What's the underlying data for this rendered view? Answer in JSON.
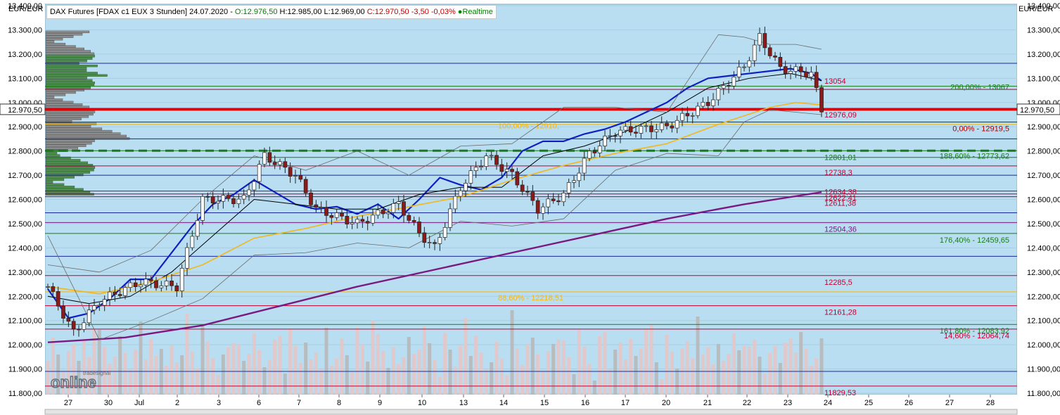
{
  "header": {
    "instrument": "DAX Futures [FDAX c1 EUX 3 Stunden] 24.07.2020 -",
    "open": "O:12.976,50",
    "high": "H:12.985,00",
    "low": "L:12.969,00",
    "close": "C:12.970,50",
    "change": "-3,50",
    "change_pct": "-0,03%",
    "realtime": "Realtime"
  },
  "logo": {
    "top": "tradesignal",
    "main": "online"
  },
  "colors": {
    "plot_bg": "#b9def2",
    "sma_blue": "#1020c0",
    "sma_black": "#000000",
    "sma_orange": "#f0b820",
    "sma_purple": "#7a1a80",
    "bollinger": "#6b6b6b",
    "candle_up": "#ffffff",
    "candle_down": "#8b1a1a",
    "volume": "#e8c4c4",
    "last_price_line": "#e00000",
    "support_green": "#1a7a1a"
  },
  "chart_data": {
    "type": "candlestick",
    "currency_label_left": "EUR/EUR",
    "currency_label_right": "EUR/EUR",
    "ylim": [
      11800,
      13400
    ],
    "y_ticks": [
      "13.400,00",
      "13.300,00",
      "13.200,00",
      "13.100,00",
      "13.000,00",
      "12.900,00",
      "12.800,00",
      "12.700,00",
      "12.600,00",
      "12.500,00",
      "12.400,00",
      "12.300,00",
      "12.200,00",
      "12.100,00",
      "12.000,00",
      "11.900,00",
      "11.800,00"
    ],
    "last_price": 12970.5,
    "last_price_label": "12.970,50",
    "x_tick_labels": [
      "27",
      "30",
      "Jul",
      "2",
      "3",
      "6",
      "7",
      "8",
      "9",
      "10",
      "13",
      "14",
      "15",
      "16",
      "17",
      "20",
      "21",
      "22",
      "23",
      "24",
      "25",
      "26",
      "27",
      "28"
    ],
    "horizontal_levels": [
      {
        "value": 13162,
        "color": "#1a2a9a"
      },
      {
        "value": 13054,
        "color": "#c00030",
        "label": "13054"
      },
      {
        "value": 13067,
        "color": "#1a7a1a",
        "label": "200,00% - 13067"
      },
      {
        "value": 12976.09,
        "color": "#c00030",
        "label": "12976,09"
      },
      {
        "value": 12919.5,
        "color": "#b00000",
        "label": "0,00% - 12919,5"
      },
      {
        "value": 12910,
        "color": "#f0b820",
        "label": "100,00% - 12910,"
      },
      {
        "value": 12850,
        "color": "#1a2a9a"
      },
      {
        "value": 12801.01,
        "color": "#1a7a1a",
        "label": "12801,01"
      },
      {
        "value": 12773.62,
        "color": "#1a7a1a",
        "label": "188,60% - 12773,62"
      },
      {
        "value": 12738.3,
        "color": "#c00030",
        "label": "12738,3"
      },
      {
        "value": 12700,
        "color": "#1a2a9a"
      },
      {
        "value": 12634.38,
        "color": "#c00030",
        "label": "12634,38"
      },
      {
        "value": 12622.41,
        "color": "#c00030",
        "label": "12622,41"
      },
      {
        "value": 12611.38,
        "color": "#c00030",
        "label": "12611,38"
      },
      {
        "value": 12545,
        "color": "#1a2a9a"
      },
      {
        "value": 12504.36,
        "color": "#7a1a80",
        "label": "12504,36"
      },
      {
        "value": 12459.65,
        "color": "#1a7a1a",
        "label": "176,40% - 12459,65"
      },
      {
        "value": 12365,
        "color": "#1a2a9a"
      },
      {
        "value": 12285.5,
        "color": "#c00030",
        "label": "12285,5"
      },
      {
        "value": 12218.51,
        "color": "#f0b820",
        "label": "88,60% - 12218,51"
      },
      {
        "value": 12161.28,
        "color": "#c00030",
        "label": "12161,28"
      },
      {
        "value": 12083.92,
        "color": "#1a7a1a",
        "label": "161,80% - 12083,92"
      },
      {
        "value": 12064.74,
        "color": "#c00030",
        "label": "14,60% - 12064,74"
      },
      {
        "value": 11890,
        "color": "#1a2a9a"
      },
      {
        "value": 11829.53,
        "color": "#c00030",
        "label": "11829,53"
      }
    ],
    "dashed_support": 12801.01,
    "series": [
      {
        "name": "SMA blue",
        "color": "#1020c0",
        "x": [
          0,
          4,
          8,
          12,
          16,
          20,
          24,
          28,
          32,
          36,
          40,
          44,
          48,
          52,
          56,
          60,
          64,
          68,
          72,
          76,
          80,
          84,
          88,
          92,
          96,
          100,
          104,
          108,
          112,
          116,
          120,
          124,
          128,
          132,
          136,
          140,
          144,
          148,
          150
        ],
        "values": [
          12230,
          12110,
          12130,
          12190,
          12270,
          12270,
          12380,
          12490,
          12580,
          12620,
          12680,
          12630,
          12580,
          12560,
          12570,
          12540,
          12580,
          12520,
          12600,
          12690,
          12660,
          12640,
          12690,
          12800,
          12840,
          12840,
          12870,
          12890,
          12920,
          12960,
          13000,
          13060,
          13100,
          13110,
          13120,
          13130,
          13140,
          13120,
          13090
        ]
      },
      {
        "name": "SMA black",
        "color": "#000000",
        "x": [
          0,
          8,
          16,
          24,
          32,
          40,
          48,
          56,
          64,
          72,
          80,
          88,
          96,
          104,
          112,
          120,
          128,
          136,
          144,
          150
        ],
        "values": [
          12200,
          12170,
          12200,
          12300,
          12450,
          12600,
          12580,
          12560,
          12560,
          12620,
          12650,
          12650,
          12780,
          12820,
          12880,
          12960,
          13060,
          13100,
          13120,
          13090
        ]
      },
      {
        "name": "SMA orange",
        "color": "#f0b820",
        "x": [
          0,
          10,
          20,
          30,
          40,
          50,
          60,
          70,
          80,
          90,
          100,
          110,
          120,
          130,
          140,
          145,
          150
        ],
        "values": [
          12240,
          12210,
          12260,
          12330,
          12440,
          12480,
          12530,
          12570,
          12610,
          12680,
          12740,
          12790,
          12830,
          12910,
          12980,
          13000,
          12990
        ]
      },
      {
        "name": "SMA purple",
        "color": "#7a1a80",
        "x": [
          0,
          15,
          30,
          45,
          60,
          75,
          90,
          105,
          120,
          135,
          150
        ],
        "values": [
          12010,
          12030,
          12080,
          12160,
          12240,
          12310,
          12380,
          12450,
          12520,
          12580,
          12630
        ]
      },
      {
        "name": "Bollinger upper",
        "color": "#6b6b6b",
        "x": [
          0,
          10,
          20,
          30,
          40,
          50,
          60,
          70,
          80,
          90,
          100,
          110,
          120,
          130,
          135,
          140,
          145,
          150
        ],
        "values": [
          12330,
          12300,
          12390,
          12600,
          12780,
          12720,
          12800,
          12700,
          12820,
          12830,
          12980,
          12980,
          12960,
          13280,
          13270,
          13240,
          13240,
          13220
        ]
      },
      {
        "name": "Bollinger lower",
        "color": "#6b6b6b",
        "x": [
          0,
          10,
          20,
          30,
          40,
          50,
          60,
          70,
          80,
          90,
          100,
          110,
          120,
          130,
          135,
          140,
          145,
          150
        ],
        "values": [
          12450,
          12020,
          12100,
          12190,
          12370,
          12380,
          12420,
          12400,
          12510,
          12490,
          12520,
          12720,
          12790,
          12780,
          12920,
          12970,
          12960,
          12950
        ]
      }
    ],
    "candles_approx": {
      "count": 151,
      "start": 12240,
      "path": [
        [
          0,
          12240
        ],
        [
          5,
          12050
        ],
        [
          10,
          12180
        ],
        [
          18,
          12260
        ],
        [
          25,
          12240
        ],
        [
          30,
          12600
        ],
        [
          38,
          12600
        ],
        [
          42,
          12780
        ],
        [
          48,
          12700
        ],
        [
          52,
          12560
        ],
        [
          60,
          12500
        ],
        [
          68,
          12580
        ],
        [
          72,
          12460
        ],
        [
          75,
          12400
        ],
        [
          80,
          12650
        ],
        [
          85,
          12780
        ],
        [
          90,
          12700
        ],
        [
          95,
          12560
        ],
        [
          100,
          12620
        ],
        [
          105,
          12790
        ],
        [
          110,
          12880
        ],
        [
          120,
          12900
        ],
        [
          128,
          13000
        ],
        [
          135,
          13150
        ],
        [
          138,
          13270
        ],
        [
          142,
          13140
        ],
        [
          148,
          13120
        ],
        [
          150,
          12970
        ]
      ]
    }
  }
}
